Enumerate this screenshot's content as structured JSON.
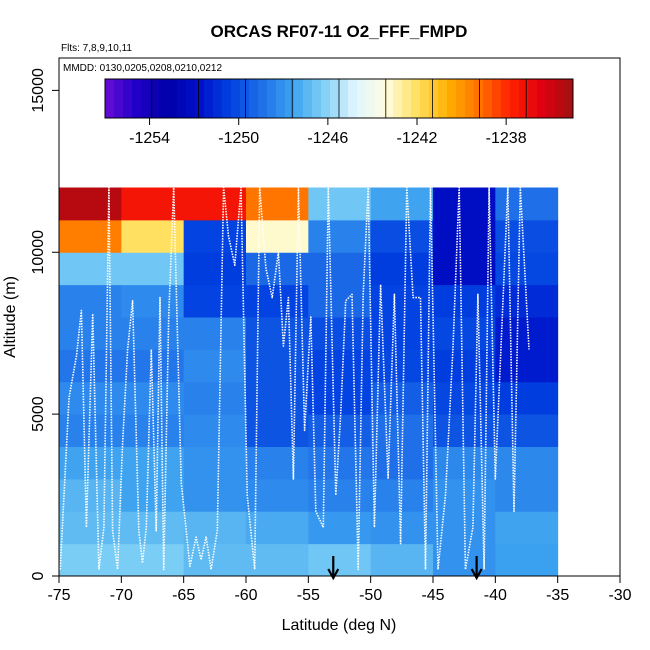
{
  "chart_data": {
    "type": "heatmap",
    "title": "ORCAS RF07-11 O2_FFF_FMPD",
    "flights_note": "Flts: 7,8,9,10,11",
    "dates_note": "MMDD: 0130,0205,0208,0210,0212",
    "xlabel": "Latitude (deg N)",
    "ylabel": "Altitude (m)",
    "xlim": [
      -75,
      -30
    ],
    "ylim": [
      0,
      16000
    ],
    "x_ticks": [
      -75,
      -70,
      -65,
      -60,
      -55,
      -50,
      -45,
      -40,
      -35,
      -30
    ],
    "y_ticks": [
      0,
      5000,
      10000,
      15000
    ],
    "colorbar": {
      "min": -1256,
      "max": -1235,
      "ticks": [
        -1254,
        -1250,
        -1246,
        -1242,
        -1238
      ],
      "colors": [
        "#6a0dd6",
        "#2000c8",
        "#0000a8",
        "#0010c8",
        "#0040e0",
        "#1f6fe8",
        "#3aa0f0",
        "#7fd0f5",
        "#dff5ff",
        "#fffde0",
        "#ffe060",
        "#ffb000",
        "#ff7000",
        "#ff2000",
        "#e00010",
        "#a01010"
      ]
    },
    "lat_edges": [
      -75,
      -70,
      -65,
      -60,
      -55,
      -50,
      -45,
      -40,
      -35
    ],
    "alt_edges": [
      0,
      1000,
      2000,
      3000,
      4000,
      5000,
      6000,
      7000,
      8000,
      9000,
      10000,
      11000,
      12000
    ],
    "cells": [
      [
        -1246.3,
        -1246.3,
        -1246.8,
        -1246.8,
        -1246.5,
        -1247.0,
        -1248.0,
        -1247.6
      ],
      [
        -1246.8,
        -1246.8,
        -1247.0,
        -1247.3,
        -1247.8,
        -1248.0,
        -1248.0,
        -1247.5
      ],
      [
        -1247.0,
        -1247.5,
        -1248.0,
        -1248.2,
        -1248.5,
        -1248.5,
        -1248.0,
        -1248.3
      ],
      [
        -1247.5,
        -1247.5,
        -1248.0,
        -1248.5,
        -1248.8,
        -1249.0,
        -1248.3,
        -1248.3
      ],
      [
        -1248.5,
        -1248.5,
        -1248.2,
        -1249.8,
        -1249.5,
        -1249.0,
        -1249.8,
        -1249.8
      ],
      [
        -1248.2,
        -1248.2,
        -1248.5,
        -1249.8,
        -1250.3,
        -1249.5,
        -1250.2,
        -1250.5
      ],
      [
        -1248.8,
        -1248.8,
        -1248.2,
        -1249.8,
        -1250.3,
        -1250.2,
        -1250.5,
        -1251.5
      ],
      [
        -1248.5,
        -1248.5,
        -1248.5,
        -1249.8,
        -1250.0,
        -1250.3,
        -1250.2,
        -1251.5
      ],
      [
        -1248.5,
        -1248.2,
        -1250.3,
        -1250.3,
        -1249.2,
        -1250.3,
        -1250.5,
        -1251.0
      ],
      [
        -1246.5,
        -1246.5,
        -1250.5,
        -1249.2,
        -1249.2,
        -1250.5,
        -1252.0,
        -1250.2
      ],
      [
        -1239.5,
        -1242.0,
        -1250.3,
        -1243.2,
        -1248.5,
        -1250.0,
        -1252.0,
        -1250.0
      ],
      [
        -1235.5,
        -1237.3,
        -1237.3,
        -1239.3,
        -1246.5,
        -1247.5,
        -1252.0,
        -1249.0
      ]
    ],
    "arrows_lat": [
      -53,
      -41.5
    ],
    "flight_path_points": [
      [
        -74.9,
        200
      ],
      [
        -74.2,
        5500
      ],
      [
        -73.6,
        6800
      ],
      [
        -73.2,
        8200
      ],
      [
        -72.8,
        1500
      ],
      [
        -72.3,
        8100
      ],
      [
        -71.8,
        200
      ],
      [
        -71.4,
        1500
      ],
      [
        -71.0,
        12000
      ],
      [
        -70.7,
        1400
      ],
      [
        -70.3,
        200
      ],
      [
        -69.9,
        4100
      ],
      [
        -69.5,
        7000
      ],
      [
        -69.1,
        8500
      ],
      [
        -68.6,
        1400
      ],
      [
        -68.3,
        400
      ],
      [
        -68.0,
        1500
      ],
      [
        -67.6,
        7000
      ],
      [
        -67.2,
        1400
      ],
      [
        -66.9,
        8600
      ],
      [
        -66.6,
        200
      ],
      [
        -66.2,
        8000
      ],
      [
        -65.8,
        12000
      ],
      [
        -65.2,
        2900
      ],
      [
        -64.5,
        300
      ],
      [
        -64.0,
        1200
      ],
      [
        -63.6,
        500
      ],
      [
        -63.2,
        1200
      ],
      [
        -62.8,
        200
      ],
      [
        -62.3,
        1400
      ],
      [
        -61.8,
        12000
      ],
      [
        -61.4,
        10500
      ],
      [
        -60.9,
        9600
      ],
      [
        -60.4,
        12000
      ],
      [
        -59.9,
        2500
      ],
      [
        -59.3,
        200
      ],
      [
        -58.9,
        12000
      ],
      [
        -58.4,
        9500
      ],
      [
        -57.9,
        8600
      ],
      [
        -57.4,
        10000
      ],
      [
        -57.0,
        7100
      ],
      [
        -56.6,
        8600
      ],
      [
        -56.2,
        3000
      ],
      [
        -55.8,
        12000
      ],
      [
        -55.3,
        4500
      ],
      [
        -54.8,
        8000
      ],
      [
        -54.4,
        2000
      ],
      [
        -53.8,
        1500
      ],
      [
        -53.4,
        12000
      ],
      [
        -52.8,
        2500
      ],
      [
        -52.4,
        5000
      ],
      [
        -52.0,
        8500
      ],
      [
        -51.5,
        8700
      ],
      [
        -51.0,
        200
      ],
      [
        -50.6,
        8700
      ],
      [
        -50.2,
        12000
      ],
      [
        -49.7,
        1500
      ],
      [
        -49.2,
        9000
      ],
      [
        -48.6,
        3000
      ],
      [
        -48.1,
        8700
      ],
      [
        -47.6,
        1000
      ],
      [
        -47.1,
        12000
      ],
      [
        -46.6,
        8600
      ],
      [
        -46.0,
        8600
      ],
      [
        -45.6,
        200
      ],
      [
        -45.2,
        12000
      ],
      [
        -44.6,
        200
      ],
      [
        -44.0,
        2500
      ],
      [
        -43.4,
        7000
      ],
      [
        -42.9,
        12000
      ],
      [
        -42.4,
        200
      ],
      [
        -41.8,
        1500
      ],
      [
        -41.4,
        8700
      ],
      [
        -40.9,
        200
      ],
      [
        -40.5,
        12000
      ],
      [
        -40.0,
        3000
      ],
      [
        -39.5,
        7500
      ],
      [
        -39.0,
        12000
      ],
      [
        -38.5,
        2000
      ],
      [
        -38.0,
        12000
      ],
      [
        -37.3,
        7000
      ]
    ]
  }
}
